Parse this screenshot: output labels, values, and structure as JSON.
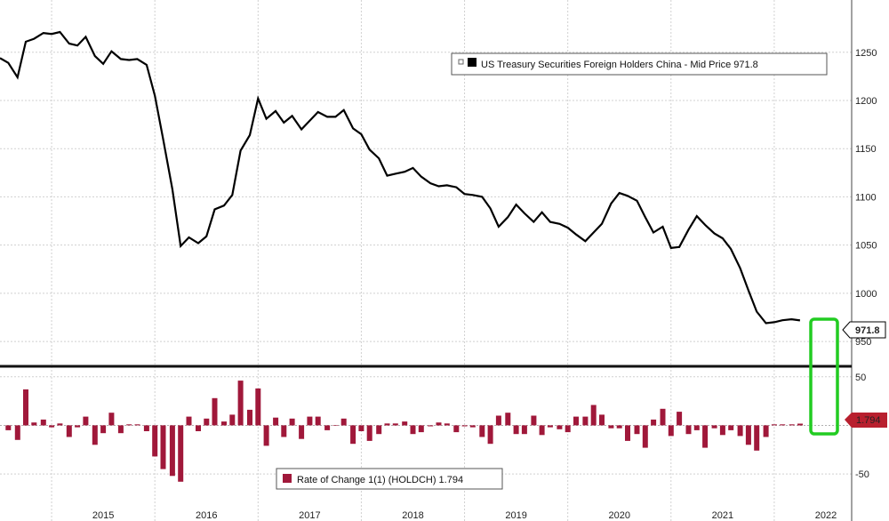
{
  "chart_data": [
    {
      "type": "line",
      "x_ticks": [
        "2015",
        "2016",
        "2017",
        "2018",
        "2019",
        "2020",
        "2021",
        "2022"
      ],
      "y_ticks": [
        950,
        1000,
        1050,
        1100,
        1150,
        1200,
        1250
      ],
      "ylim": [
        927,
        1295
      ],
      "xlim": [
        2014.5,
        2022.75
      ],
      "grid": true,
      "legend_position": "top-right",
      "last_value_label": "971.8",
      "series": [
        {
          "name": "US Treasury Securities Foreign Holders China - Mid Price 971.8",
          "color": "#000000",
          "x": [
            2014.5,
            2014.58,
            2014.67,
            2014.75,
            2014.83,
            2014.92,
            2015.0,
            2015.08,
            2015.17,
            2015.25,
            2015.33,
            2015.42,
            2015.5,
            2015.58,
            2015.67,
            2015.75,
            2015.83,
            2015.92,
            2016.0,
            2016.08,
            2016.17,
            2016.25,
            2016.33,
            2016.42,
            2016.5,
            2016.58,
            2016.67,
            2016.75,
            2016.83,
            2016.92,
            2017.0,
            2017.08,
            2017.17,
            2017.25,
            2017.33,
            2017.42,
            2017.5,
            2017.58,
            2017.67,
            2017.75,
            2017.83,
            2017.92,
            2018.0,
            2018.08,
            2018.17,
            2018.25,
            2018.33,
            2018.42,
            2018.5,
            2018.58,
            2018.67,
            2018.75,
            2018.83,
            2018.92,
            2019.0,
            2019.08,
            2019.17,
            2019.25,
            2019.33,
            2019.42,
            2019.5,
            2019.58,
            2019.67,
            2019.75,
            2019.83,
            2019.92,
            2020.0,
            2020.08,
            2020.17,
            2020.25,
            2020.33,
            2020.42,
            2020.5,
            2020.58,
            2020.67,
            2020.75,
            2020.83,
            2020.92,
            2021.0,
            2021.08,
            2021.17,
            2021.25,
            2021.33,
            2021.42,
            2021.5,
            2021.58,
            2021.67,
            2021.75,
            2021.83,
            2021.92,
            2022.0,
            2022.08,
            2022.17,
            2022.25
          ],
          "values": [
            1244,
            1239,
            1224,
            1261,
            1264,
            1270,
            1269,
            1271,
            1259,
            1257,
            1266,
            1246,
            1238,
            1251,
            1243,
            1242,
            1243,
            1237,
            1205,
            1160,
            1108,
            1049,
            1058,
            1052,
            1059,
            1087,
            1091,
            1102,
            1148,
            1164,
            1202,
            1181,
            1189,
            1177,
            1184,
            1170,
            1179,
            1188,
            1183,
            1183,
            1190,
            1171,
            1165,
            1149,
            1140,
            1122,
            1124,
            1126,
            1130,
            1121,
            1114,
            1111,
            1112,
            1110,
            1103,
            1102,
            1100,
            1088,
            1069,
            1079,
            1092,
            1083,
            1074,
            1084,
            1074,
            1072,
            1068,
            1061,
            1054,
            1063,
            1072,
            1093,
            1104,
            1101,
            1096,
            1079,
            1063,
            1069,
            1047,
            1048,
            1066,
            1080,
            1071,
            1062,
            1057,
            1046,
            1026,
            1003,
            981,
            969,
            970,
            972,
            973,
            971.8
          ]
        }
      ]
    },
    {
      "type": "bar",
      "y_ticks": [
        50,
        -50
      ],
      "ylim": [
        -70,
        58
      ],
      "xlim": [
        2014.5,
        2022.75
      ],
      "grid": true,
      "legend_position": "bottom-left",
      "last_value_label": "1.794",
      "series": [
        {
          "name": "Rate of Change 1(1) (HOLDCH) 1.794",
          "color": "#a0183a",
          "x": [
            2014.58,
            2014.67,
            2014.75,
            2014.83,
            2014.92,
            2015.0,
            2015.08,
            2015.17,
            2015.25,
            2015.33,
            2015.42,
            2015.5,
            2015.58,
            2015.67,
            2015.75,
            2015.83,
            2015.92,
            2016.0,
            2016.08,
            2016.17,
            2016.25,
            2016.33,
            2016.42,
            2016.5,
            2016.58,
            2016.67,
            2016.75,
            2016.83,
            2016.92,
            2017.0,
            2017.08,
            2017.17,
            2017.25,
            2017.33,
            2017.42,
            2017.5,
            2017.58,
            2017.67,
            2017.75,
            2017.83,
            2017.92,
            2018.0,
            2018.08,
            2018.17,
            2018.25,
            2018.33,
            2018.42,
            2018.5,
            2018.58,
            2018.67,
            2018.75,
            2018.83,
            2018.92,
            2019.0,
            2019.08,
            2019.17,
            2019.25,
            2019.33,
            2019.42,
            2019.5,
            2019.58,
            2019.67,
            2019.75,
            2019.83,
            2019.92,
            2020.0,
            2020.08,
            2020.17,
            2020.25,
            2020.33,
            2020.42,
            2020.5,
            2020.58,
            2020.67,
            2020.75,
            2020.83,
            2020.92,
            2021.0,
            2021.08,
            2021.17,
            2021.25,
            2021.33,
            2021.42,
            2021.5,
            2021.58,
            2021.67,
            2021.75,
            2021.83,
            2021.92,
            2022.0,
            2022.08,
            2022.17,
            2022.25
          ],
          "values": [
            -5,
            -15,
            37,
            3,
            6,
            -2,
            2,
            -12,
            -2,
            9,
            -20,
            -8,
            13,
            -8,
            1,
            1,
            -6,
            -32,
            -45,
            -52,
            -58,
            9,
            -6,
            7,
            28,
            4,
            11,
            46,
            16,
            38,
            -21,
            8,
            -12,
            7,
            -14,
            9,
            9,
            -5,
            0,
            7,
            -19,
            -6,
            -16,
            -9,
            2,
            2,
            4,
            -9,
            -7,
            -1,
            3,
            2,
            -7,
            -1,
            -2,
            -12,
            -19,
            10,
            13,
            -9,
            -9,
            10,
            -10,
            -2,
            -4,
            -7,
            9,
            9,
            21,
            11,
            -3,
            -3,
            -16,
            -9,
            -23,
            6,
            17,
            -11,
            14,
            -9,
            -5,
            -23,
            -3,
            -10,
            -5,
            -11,
            -20,
            -26,
            -12,
            1,
            1,
            1,
            1.794
          ]
        }
      ]
    }
  ]
}
